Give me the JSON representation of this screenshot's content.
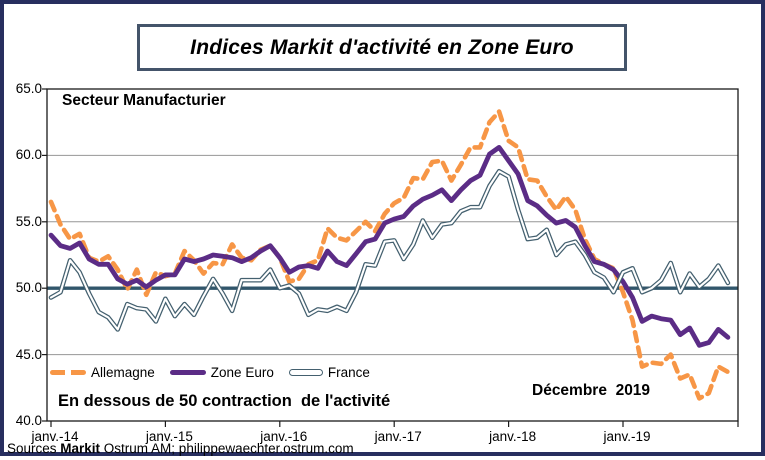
{
  "chart_data": {
    "type": "line",
    "title": "Indices Markit d'activité en Zone Euro",
    "region_label": "Secteur Manufacturier",
    "annotation_below50": "En dessous de 50 contraction  de l'activité",
    "annotation_date": "Décembre  2019",
    "ylim": [
      40,
      65
    ],
    "grid": true,
    "legend_position": "inside-bottom-left",
    "reference_line": {
      "value": 50,
      "color": "#31566B"
    },
    "colors": {
      "grid": "#969696",
      "axis": "#1A1A1A",
      "frame": "#272E5F",
      "title_border": "#44546A"
    },
    "y_ticks": {
      "values": [
        65,
        60,
        55,
        50,
        45,
        40
      ],
      "labels": [
        "65.0",
        "60.0",
        "55.0",
        "50.0",
        "45.0",
        "40.0"
      ]
    },
    "x_ticks": {
      "months": [
        0,
        12,
        24,
        36,
        48,
        60
      ],
      "labels": [
        "janv.-14",
        "janv.-15",
        "janv.-16",
        "janv.-17",
        "janv.-18",
        "janv.-19"
      ]
    },
    "x_frequency": "monthly",
    "x_range_label": "janv.-14 à déc.-19",
    "series": [
      {
        "name": "Allemagne",
        "color": "#F79646",
        "line_style": "dashed",
        "values": [
          56.5,
          54.8,
          53.7,
          54.1,
          52.3,
          52.0,
          52.4,
          51.4,
          49.9,
          51.4,
          49.5,
          51.2,
          50.9,
          51.1,
          52.8,
          52.1,
          51.1,
          51.9,
          51.8,
          53.3,
          52.3,
          52.1,
          52.9,
          53.2,
          52.3,
          50.5,
          50.7,
          51.8,
          52.1,
          54.5,
          53.8,
          53.6,
          54.3,
          55.0,
          54.3,
          55.6,
          56.4,
          56.8,
          58.3,
          58.2,
          59.5,
          59.6,
          58.1,
          59.3,
          60.6,
          60.6,
          62.5,
          63.3,
          61.1,
          60.6,
          58.2,
          58.1,
          56.9,
          55.9,
          56.9,
          55.9,
          53.7,
          52.2,
          51.8,
          51.5,
          49.7,
          47.6,
          44.1,
          44.4,
          44.3,
          45.0,
          43.2,
          43.5,
          41.7,
          42.1,
          44.1,
          43.7
        ]
      },
      {
        "name": "Zone Euro",
        "color": "#5B2C86",
        "line_style": "thick-solid",
        "values": [
          54.0,
          53.2,
          53.0,
          53.4,
          52.2,
          51.8,
          51.8,
          50.7,
          50.3,
          50.6,
          50.1,
          50.6,
          51.0,
          51.0,
          52.2,
          52.0,
          52.2,
          52.5,
          52.4,
          52.3,
          52.0,
          52.3,
          52.8,
          53.2,
          52.3,
          51.2,
          51.6,
          51.7,
          51.5,
          52.8,
          52.0,
          51.7,
          52.6,
          53.5,
          53.7,
          54.9,
          55.2,
          55.4,
          56.2,
          56.7,
          57.0,
          57.4,
          56.6,
          57.4,
          58.1,
          58.5,
          60.1,
          60.6,
          59.6,
          58.6,
          56.6,
          56.2,
          55.5,
          54.9,
          55.1,
          54.6,
          53.2,
          52.0,
          51.8,
          51.4,
          50.5,
          49.3,
          47.5,
          47.9,
          47.7,
          47.6,
          46.5,
          47.0,
          45.7,
          45.9,
          46.9,
          46.3
        ]
      },
      {
        "name": "France",
        "color": "#44606F",
        "line_style": "outlined-double",
        "values": [
          49.3,
          49.7,
          52.1,
          51.2,
          49.6,
          48.2,
          47.8,
          46.9,
          48.8,
          48.5,
          48.4,
          47.5,
          49.2,
          47.9,
          48.8,
          48.0,
          49.4,
          50.7,
          49.6,
          48.3,
          50.6,
          50.6,
          50.6,
          51.4,
          50.0,
          50.2,
          49.6,
          48.0,
          48.4,
          48.3,
          48.6,
          48.3,
          49.7,
          51.8,
          51.7,
          53.5,
          53.6,
          52.2,
          53.3,
          55.1,
          53.8,
          54.8,
          54.9,
          55.8,
          56.1,
          56.1,
          57.7,
          58.8,
          58.4,
          55.9,
          53.7,
          53.8,
          54.4,
          52.5,
          53.3,
          53.5,
          52.5,
          51.2,
          50.8,
          49.7,
          51.2,
          51.5,
          49.7,
          50.0,
          50.6,
          51.9,
          49.7,
          51.1,
          50.1,
          50.7,
          51.7,
          50.4
        ]
      }
    ]
  },
  "footer": {
    "prefix": "Sources ",
    "bold": "Markit",
    "rest": " Ostrum AM; philippewaechter.ostrum.com"
  }
}
